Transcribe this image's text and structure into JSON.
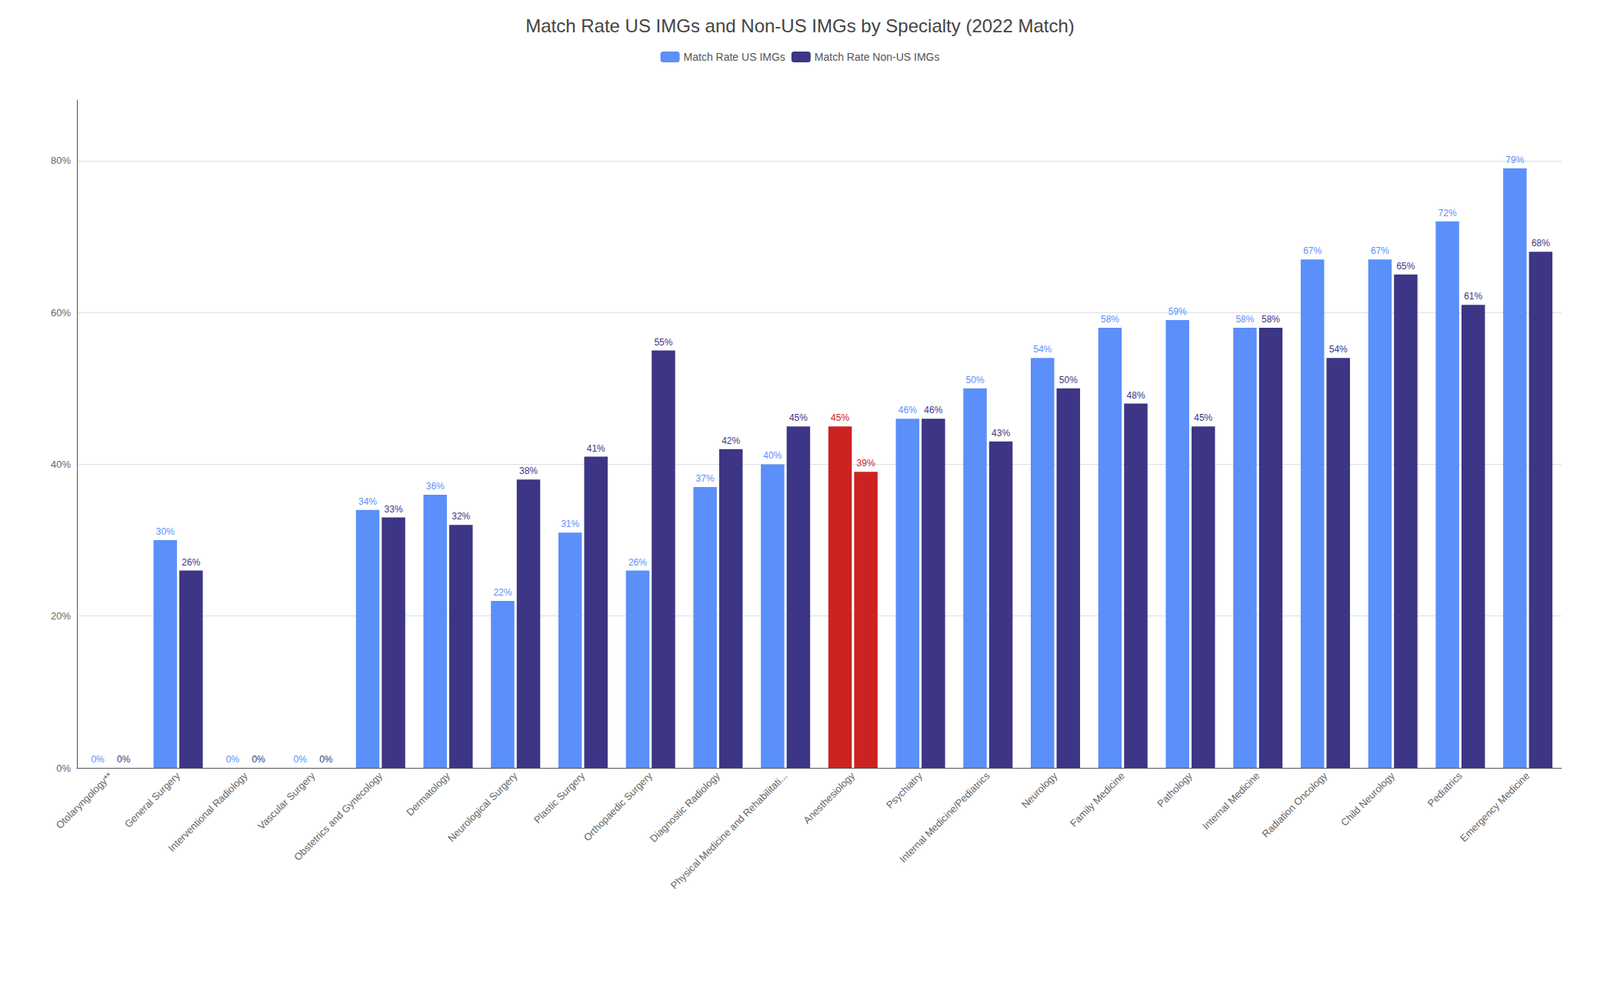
{
  "chart_data": {
    "type": "bar",
    "title": "Match Rate US IMGs and Non-US IMGs by Specialty (2022 Match)",
    "categories": [
      "Otolaryngology**",
      "General Surgery",
      "Interventional Radiology",
      "Vascular Surgery",
      "Obstetrics and Gynecology",
      "Dermatology",
      "Neurological Surgery",
      "Plastic Surgery",
      "Orthopaedic Surgery",
      "Diagnostic Radiology",
      "Physical Medicine and Rehabilitati...",
      "Anesthesiology",
      "Psychiatry",
      "Internal Medicine/Pediatrics",
      "Neurology",
      "Family Medicine",
      "Pathology",
      "Internal Medicine",
      "Radiation Oncology",
      "Child Neurology",
      "Pediatrics",
      "Emergency Medicine"
    ],
    "series": [
      {
        "name": "Match Rate US IMGs",
        "color": "#5B8FF9",
        "colors": [
          "#5B8FF9",
          "#5B8FF9",
          "#5B8FF9",
          "#5B8FF9",
          "#5B8FF9",
          "#5B8FF9",
          "#5B8FF9",
          "#5B8FF9",
          "#5B8FF9",
          "#5B8FF9",
          "#5B8FF9",
          "#CC2222",
          "#5B8FF9",
          "#5B8FF9",
          "#5B8FF9",
          "#5B8FF9",
          "#5B8FF9",
          "#5B8FF9",
          "#5B8FF9",
          "#5B8FF9",
          "#5B8FF9",
          "#5B8FF9"
        ],
        "values": [
          0,
          30,
          0,
          0,
          34,
          36,
          22,
          31,
          26,
          37,
          40,
          45,
          46,
          50,
          54,
          58,
          59,
          58,
          67,
          67,
          72,
          79
        ],
        "value_labels": [
          "0%",
          "30%",
          "0%",
          "0%",
          "34%",
          "36%",
          "22%",
          "31%",
          "26%",
          "37%",
          "40%",
          "45%",
          "46%",
          "50%",
          "54%",
          "58%",
          "59%",
          "58%",
          "67%",
          "67%",
          "72%",
          "79%"
        ]
      },
      {
        "name": "Match Rate Non-US IMGs",
        "color": "#3D3585",
        "colors": [
          "#3D3585",
          "#3D3585",
          "#3D3585",
          "#3D3585",
          "#3D3585",
          "#3D3585",
          "#3D3585",
          "#3D3585",
          "#3D3585",
          "#3D3585",
          "#3D3585",
          "#CC2222",
          "#3D3585",
          "#3D3585",
          "#3D3585",
          "#3D3585",
          "#3D3585",
          "#3D3585",
          "#3D3585",
          "#3D3585",
          "#3D3585",
          "#3D3585"
        ],
        "values": [
          0,
          26,
          0,
          0,
          33,
          32,
          38,
          41,
          55,
          42,
          45,
          39,
          46,
          43,
          50,
          48,
          45,
          58,
          54,
          65,
          61,
          68
        ],
        "value_labels": [
          "0%",
          "26%",
          "0%",
          "0%",
          "33%",
          "32%",
          "38%",
          "41%",
          "55%",
          "42%",
          "45%",
          "39%",
          "46%",
          "43%",
          "50%",
          "48%",
          "45%",
          "58%",
          "54%",
          "65%",
          "61%",
          "68%"
        ]
      }
    ],
    "ylim": [
      0,
      88
    ],
    "yticks": [
      {
        "value": 0,
        "label": "0%"
      },
      {
        "value": 20,
        "label": "20%"
      },
      {
        "value": 40,
        "label": "40%"
      },
      {
        "value": 60,
        "label": "60%"
      },
      {
        "value": 80,
        "label": "80%"
      }
    ],
    "grid": true,
    "data_labels": true,
    "legend": "top"
  }
}
